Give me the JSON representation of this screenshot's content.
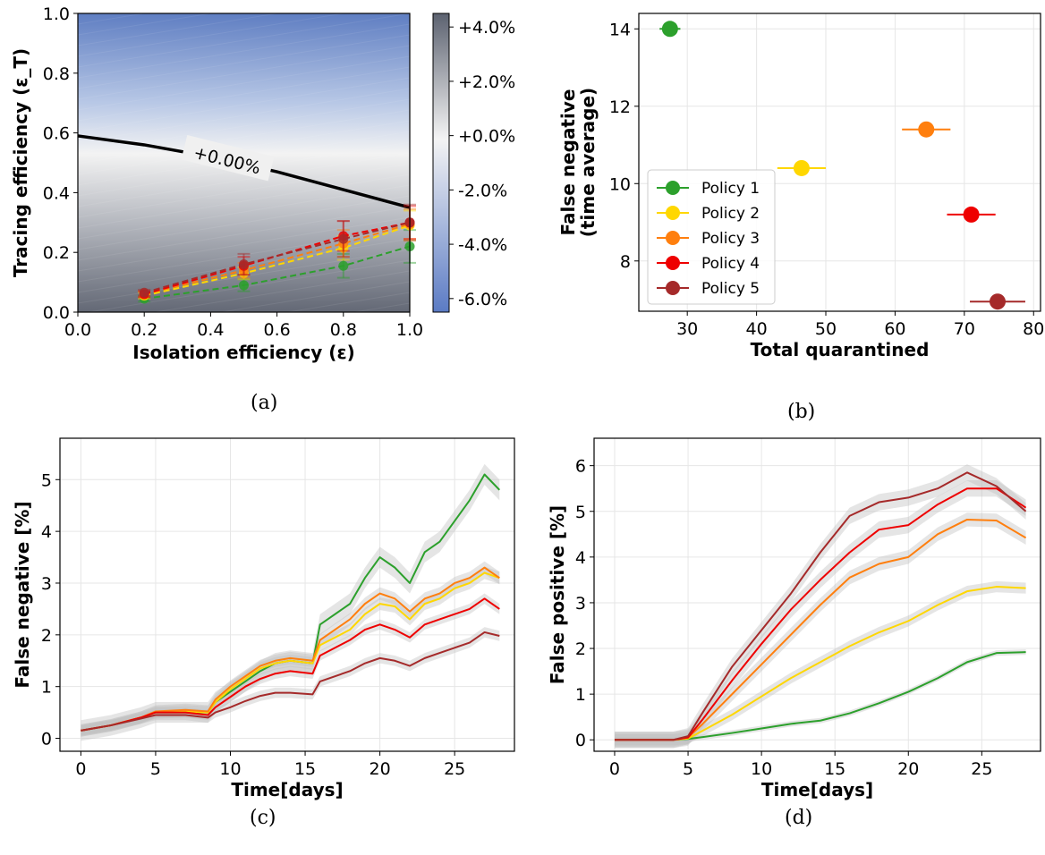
{
  "captions": [
    "(a)",
    "(b)",
    "(c)",
    "(d)"
  ],
  "policy_colors": [
    "#2ca02c",
    "#ffd700",
    "#ff7f0e",
    "#ee0000",
    "#a52a2a"
  ],
  "chart_data": [
    {
      "type": "heatmap",
      "panel": "a",
      "xlabel": "Isolation efficiency (ε_I)",
      "ylabel": "Tracing efficiency (ε_T)",
      "xlim": [
        0,
        1
      ],
      "ylim": [
        0,
        1
      ],
      "xticks": [
        "0.0",
        "0.2",
        "0.4",
        "0.6",
        "0.8",
        "1.0"
      ],
      "yticks": [
        "0.0",
        "0.2",
        "0.4",
        "0.6",
        "0.8",
        "1.0"
      ],
      "colorbar": {
        "range": [
          -6.5,
          4.5
        ],
        "ticks": [
          "+4.0%",
          "+2.0%",
          "+0.0%",
          "-2.0%",
          "-4.0%",
          "-6.0%"
        ],
        "tick_values": [
          4,
          2,
          0,
          -2,
          -4,
          -6
        ]
      },
      "contour": {
        "label": "+0.00%",
        "x": [
          0,
          0.2,
          0.4,
          0.6,
          0.8,
          1.0
        ],
        "y": [
          0.59,
          0.56,
          0.52,
          0.47,
          0.41,
          0.35
        ]
      },
      "grid": false,
      "series": [
        {
          "x": [
            0.2,
            0.5,
            0.8,
            1.0
          ],
          "y": [
            0.045,
            0.09,
            0.155,
            0.22
          ],
          "err": [
            0.01,
            0.02,
            0.04,
            0.055
          ]
        },
        {
          "x": [
            0.2,
            0.5,
            0.8,
            1.0
          ],
          "y": [
            0.055,
            0.13,
            0.215,
            0.29
          ],
          "err": [
            0.01,
            0.02,
            0.04,
            0.05
          ]
        },
        {
          "x": [
            0.2,
            0.5,
            0.8,
            1.0
          ],
          "y": [
            0.06,
            0.14,
            0.23,
            0.295
          ],
          "err": [
            0.01,
            0.025,
            0.045,
            0.05
          ]
        },
        {
          "x": [
            0.2,
            0.5,
            0.8,
            1.0
          ],
          "y": [
            0.06,
            0.155,
            0.255,
            0.3
          ],
          "err": [
            0.01,
            0.03,
            0.05,
            0.055
          ]
        },
        {
          "x": [
            0.2,
            0.5,
            0.8,
            1.0
          ],
          "y": [
            0.065,
            0.16,
            0.245,
            0.3
          ],
          "err": [
            0.01,
            0.035,
            0.06,
            0.06
          ]
        }
      ]
    },
    {
      "type": "scatter",
      "panel": "b",
      "xlabel": "Total quarantined",
      "ylabel": [
        "False negative",
        "(time average)"
      ],
      "xlim": [
        23,
        81
      ],
      "ylim": [
        6.7,
        14.4
      ],
      "xticks": [
        30,
        40,
        50,
        60,
        70,
        80
      ],
      "yticks": [
        8,
        10,
        12,
        14
      ],
      "grid": true,
      "legend_position": "lower-left",
      "series": [
        {
          "name": "Policy 1",
          "x": 27.5,
          "y": 14.0,
          "xerr": 1.5
        },
        {
          "name": "Policy 2",
          "x": 46.5,
          "y": 10.4,
          "xerr": 3.5
        },
        {
          "name": "Policy 3",
          "x": 64.5,
          "y": 11.4,
          "xerr": 3.5
        },
        {
          "name": "Policy 4",
          "x": 71.0,
          "y": 9.2,
          "xerr": 3.5
        },
        {
          "name": "Policy 5",
          "x": 74.8,
          "y": 6.95,
          "xerr": 4.0
        }
      ]
    },
    {
      "type": "line",
      "panel": "c",
      "xlabel": "Time[days]",
      "ylabel": "False negative [%]",
      "xlim": [
        -1.4,
        29
      ],
      "ylim": [
        -0.25,
        5.8
      ],
      "xticks": [
        0,
        5,
        10,
        15,
        20,
        25
      ],
      "yticks": [
        0,
        1,
        2,
        3,
        4,
        5
      ],
      "grid": true,
      "series": [
        {
          "x": [
            0,
            2,
            4,
            5,
            7,
            8.5,
            9,
            10,
            11,
            12,
            13,
            14,
            15.5,
            16,
            18,
            19,
            20,
            21,
            22,
            23,
            24,
            25,
            26,
            27,
            28
          ],
          "y": [
            0.15,
            0.25,
            0.4,
            0.5,
            0.5,
            0.5,
            0.7,
            0.9,
            1.1,
            1.3,
            1.45,
            1.5,
            1.45,
            2.2,
            2.6,
            3.1,
            3.5,
            3.3,
            3.0,
            3.6,
            3.8,
            4.2,
            4.6,
            5.1,
            4.8
          ],
          "band": 0.2
        },
        {
          "x": [
            0,
            2,
            4,
            5,
            7,
            8.5,
            9,
            10,
            11,
            12,
            13,
            14,
            15.5,
            16,
            18,
            19,
            20,
            21,
            22,
            23,
            24,
            25,
            26,
            27,
            28
          ],
          "y": [
            0.15,
            0.25,
            0.4,
            0.5,
            0.52,
            0.5,
            0.7,
            0.95,
            1.15,
            1.35,
            1.45,
            1.5,
            1.45,
            1.8,
            2.1,
            2.4,
            2.6,
            2.55,
            2.3,
            2.6,
            2.7,
            2.9,
            3.0,
            3.2,
            3.1
          ],
          "band": 0.12
        },
        {
          "x": [
            0,
            2,
            4,
            5,
            7,
            8.5,
            9,
            10,
            11,
            12,
            13,
            14,
            15.5,
            16,
            18,
            19,
            20,
            21,
            22,
            23,
            24,
            25,
            26,
            27,
            28
          ],
          "y": [
            0.15,
            0.25,
            0.4,
            0.52,
            0.55,
            0.52,
            0.75,
            1.0,
            1.2,
            1.4,
            1.5,
            1.55,
            1.5,
            1.9,
            2.3,
            2.6,
            2.8,
            2.7,
            2.45,
            2.7,
            2.8,
            3.0,
            3.1,
            3.3,
            3.1
          ],
          "band": 0.12
        },
        {
          "x": [
            0,
            2,
            4,
            5,
            7,
            8.5,
            9,
            10,
            11,
            12,
            13,
            14,
            15.5,
            16,
            18,
            19,
            20,
            21,
            22,
            23,
            24,
            25,
            26,
            27,
            28
          ],
          "y": [
            0.15,
            0.25,
            0.4,
            0.5,
            0.5,
            0.45,
            0.6,
            0.8,
            1.0,
            1.15,
            1.25,
            1.3,
            1.25,
            1.6,
            1.9,
            2.1,
            2.2,
            2.1,
            1.95,
            2.2,
            2.3,
            2.4,
            2.5,
            2.7,
            2.5
          ],
          "band": 0.1
        },
        {
          "x": [
            0,
            2,
            4,
            5,
            7,
            8.5,
            9,
            10,
            11,
            12,
            13,
            14,
            15.5,
            16,
            18,
            19,
            20,
            21,
            22,
            23,
            24,
            25,
            26,
            27,
            28
          ],
          "y": [
            0.15,
            0.25,
            0.38,
            0.45,
            0.45,
            0.4,
            0.5,
            0.6,
            0.72,
            0.82,
            0.88,
            0.88,
            0.85,
            1.1,
            1.3,
            1.45,
            1.55,
            1.5,
            1.4,
            1.55,
            1.65,
            1.75,
            1.85,
            2.05,
            1.98
          ],
          "band": 0.1
        }
      ]
    },
    {
      "type": "line",
      "panel": "d",
      "xlabel": "Time[days]",
      "ylabel": "False positive [%]",
      "xlim": [
        -1.4,
        29
      ],
      "ylim": [
        -0.25,
        6.6
      ],
      "xticks": [
        0,
        5,
        10,
        15,
        20,
        25
      ],
      "yticks": [
        0,
        1,
        2,
        3,
        4,
        5,
        6
      ],
      "grid": true,
      "series": [
        {
          "x": [
            0,
            4,
            5,
            6,
            8,
            10,
            12,
            14,
            16,
            18,
            20,
            22,
            24,
            26,
            28
          ],
          "y": [
            0,
            0,
            0.02,
            0.06,
            0.15,
            0.25,
            0.35,
            0.42,
            0.58,
            0.8,
            1.05,
            1.35,
            1.7,
            1.9,
            1.92
          ],
          "band": 0.06
        },
        {
          "x": [
            0,
            4,
            5,
            6,
            8,
            10,
            12,
            14,
            16,
            18,
            20,
            22,
            24,
            26,
            28
          ],
          "y": [
            0,
            0,
            0.03,
            0.2,
            0.55,
            0.95,
            1.35,
            1.7,
            2.05,
            2.35,
            2.6,
            2.95,
            3.25,
            3.35,
            3.32
          ],
          "band": 0.12
        },
        {
          "x": [
            0,
            4,
            5,
            6,
            8,
            10,
            12,
            14,
            16,
            18,
            20,
            22,
            24,
            26,
            28
          ],
          "y": [
            0,
            0,
            0.05,
            0.35,
            1.0,
            1.65,
            2.3,
            2.95,
            3.55,
            3.85,
            4.0,
            4.5,
            4.82,
            4.8,
            4.42
          ],
          "band": 0.15
        },
        {
          "x": [
            0,
            4,
            5,
            6,
            8,
            10,
            12,
            14,
            16,
            18,
            20,
            22,
            24,
            26,
            28
          ],
          "y": [
            0,
            0,
            0.05,
            0.45,
            1.3,
            2.1,
            2.85,
            3.5,
            4.1,
            4.6,
            4.7,
            5.15,
            5.5,
            5.5,
            5.08
          ],
          "band": 0.18
        },
        {
          "x": [
            0,
            4,
            5,
            6,
            8,
            10,
            12,
            14,
            16,
            18,
            20,
            22,
            24,
            26,
            28
          ],
          "y": [
            0,
            0,
            0.08,
            0.6,
            1.6,
            2.4,
            3.2,
            4.1,
            4.9,
            5.2,
            5.3,
            5.5,
            5.85,
            5.55,
            5.0
          ],
          "band": 0.18
        }
      ]
    }
  ]
}
